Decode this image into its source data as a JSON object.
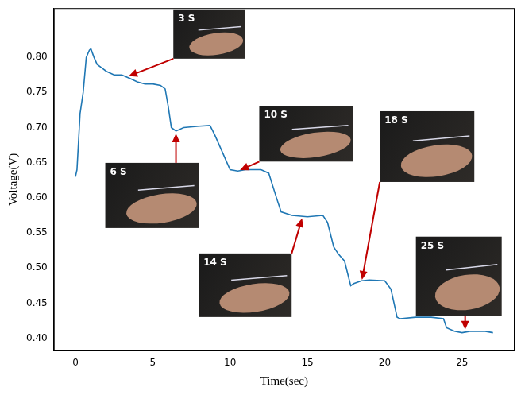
{
  "chart_data": {
    "type": "line",
    "x_label": "Time(sec)",
    "y_label": "Voltage(V)",
    "x": [
      0,
      0.1,
      0.3,
      0.5,
      0.7,
      0.9,
      1.0,
      1.2,
      1.4,
      1.7,
      2,
      2.5,
      3,
      3.5,
      4,
      4.5,
      5,
      5.5,
      5.8,
      6,
      6.2,
      6.5,
      7,
      8,
      8.7,
      9,
      9.5,
      10,
      10.5,
      11,
      12,
      12.5,
      13,
      13.3,
      14,
      15,
      16,
      16.3,
      16.7,
      17,
      17.4,
      17.8,
      18,
      18.5,
      19,
      20,
      20.4,
      20.8,
      21,
      22,
      23,
      23.8,
      24,
      24.5,
      25,
      25.5,
      26,
      26.5,
      27
    ],
    "values": [
      0.63,
      0.64,
      0.72,
      0.75,
      0.8,
      0.81,
      0.812,
      0.8,
      0.79,
      0.785,
      0.78,
      0.775,
      0.775,
      0.77,
      0.765,
      0.762,
      0.762,
      0.76,
      0.755,
      0.73,
      0.7,
      0.695,
      0.7,
      0.702,
      0.703,
      0.69,
      0.665,
      0.64,
      0.638,
      0.64,
      0.64,
      0.635,
      0.6,
      0.58,
      0.575,
      0.573,
      0.575,
      0.565,
      0.53,
      0.52,
      0.51,
      0.475,
      0.478,
      0.482,
      0.483,
      0.482,
      0.47,
      0.43,
      0.428,
      0.43,
      0.43,
      0.428,
      0.415,
      0.41,
      0.408,
      0.41,
      0.41,
      0.41,
      0.408
    ],
    "color": "#1f77b4",
    "xlim": [
      -1.4,
      28.4
    ],
    "ylim": [
      0.382,
      0.87
    ],
    "xticks": [
      0,
      5,
      10,
      15,
      20,
      25
    ],
    "yticks": [
      {
        "value": 0.4,
        "label": "0.40"
      },
      {
        "value": 0.45,
        "label": "0.45"
      },
      {
        "value": 0.5,
        "label": "0.50"
      },
      {
        "value": 0.55,
        "label": "0.55"
      },
      {
        "value": 0.6,
        "label": "0.60"
      },
      {
        "value": 0.65,
        "label": "0.65"
      },
      {
        "value": 0.7,
        "label": "0.70"
      },
      {
        "value": 0.75,
        "label": "0.75"
      },
      {
        "value": 0.8,
        "label": "0.80"
      }
    ],
    "grid": false,
    "annotations": [
      {
        "text": "3 S",
        "x": 3.3,
        "y": 0.772
      },
      {
        "text": "6 S",
        "x": 6.5,
        "y": 0.695
      },
      {
        "text": "10 S",
        "x": 10.5,
        "y": 0.638
      },
      {
        "text": "14 S",
        "x": 14.7,
        "y": 0.574
      },
      {
        "text": "18 S",
        "x": 18.5,
        "y": 0.48
      },
      {
        "text": "25 S",
        "x": 25.2,
        "y": 0.409
      }
    ]
  }
}
